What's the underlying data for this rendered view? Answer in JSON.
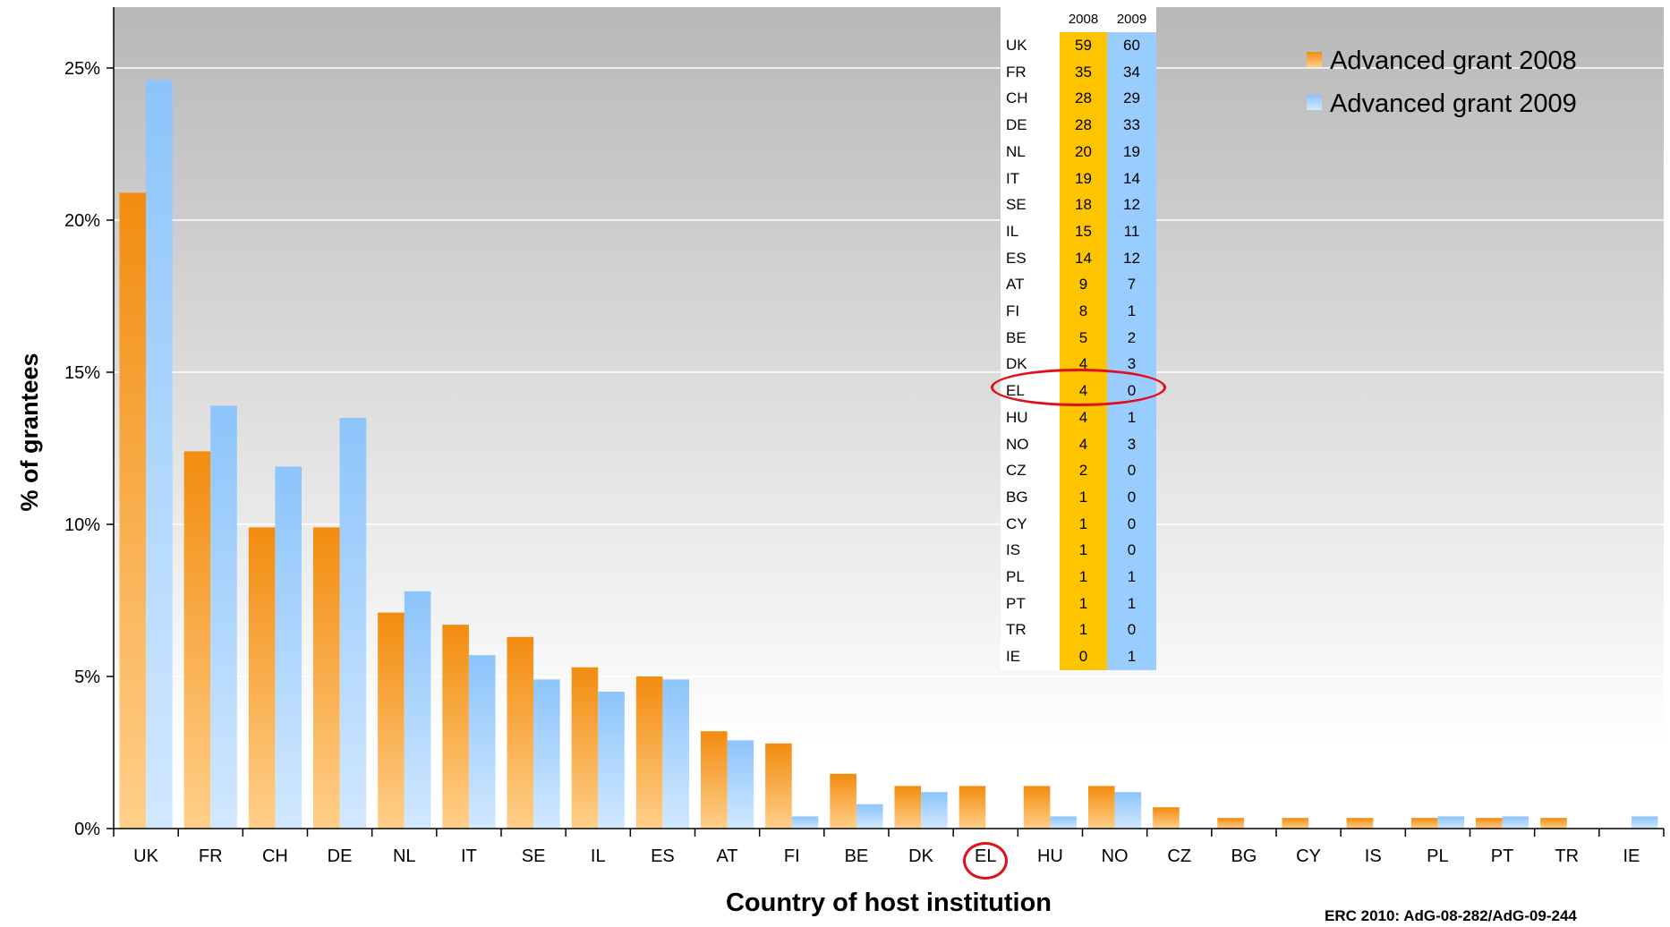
{
  "chart_data": {
    "type": "bar",
    "title": "",
    "xlabel": "Country of host institution",
    "ylabel": "% of grantees",
    "ylim": [
      0,
      0.27
    ],
    "yticks": [
      0,
      0.05,
      0.1,
      0.15,
      0.2,
      0.25
    ],
    "ytick_labels": [
      "0%",
      "5%",
      "10%",
      "15%",
      "20%",
      "25%"
    ],
    "grid": true,
    "legend_position": "top-right",
    "categories": [
      "UK",
      "FR",
      "CH",
      "DE",
      "NL",
      "IT",
      "SE",
      "IL",
      "ES",
      "AT",
      "FI",
      "BE",
      "DK",
      "EL",
      "HU",
      "NO",
      "CZ",
      "BG",
      "CY",
      "IS",
      "PL",
      "PT",
      "TR",
      "IE"
    ],
    "series": [
      {
        "name": "Advanced grant 2008",
        "color": "#f7941d",
        "values": [
          0.209,
          0.124,
          0.099,
          0.099,
          0.071,
          0.067,
          0.063,
          0.053,
          0.05,
          0.032,
          0.028,
          0.018,
          0.014,
          0.014,
          0.014,
          0.014,
          0.007,
          0.0035,
          0.0035,
          0.0035,
          0.0035,
          0.0035,
          0.0035,
          0
        ]
      },
      {
        "name": "Advanced grant 2009",
        "color": "#99ccff",
        "values": [
          0.246,
          0.139,
          0.119,
          0.135,
          0.078,
          0.057,
          0.049,
          0.045,
          0.049,
          0.029,
          0.004,
          0.008,
          0.012,
          0,
          0.004,
          0.012,
          0,
          0,
          0,
          0,
          0.004,
          0.004,
          0,
          0.004
        ]
      }
    ],
    "highlighted_category": "EL"
  },
  "table": {
    "header": [
      "2008",
      "2009"
    ],
    "rows": [
      {
        "country": "UK",
        "a": "59",
        "b": "60"
      },
      {
        "country": "FR",
        "a": "35",
        "b": "34"
      },
      {
        "country": "CH",
        "a": "28",
        "b": "29"
      },
      {
        "country": "DE",
        "a": "28",
        "b": "33"
      },
      {
        "country": "NL",
        "a": "20",
        "b": "19"
      },
      {
        "country": "IT",
        "a": "19",
        "b": "14"
      },
      {
        "country": "SE",
        "a": "18",
        "b": "12"
      },
      {
        "country": "IL",
        "a": "15",
        "b": "11"
      },
      {
        "country": "ES",
        "a": "14",
        "b": "12"
      },
      {
        "country": "AT",
        "a": "9",
        "b": "7"
      },
      {
        "country": "FI",
        "a": "8",
        "b": "1"
      },
      {
        "country": "BE",
        "a": "5",
        "b": "2"
      },
      {
        "country": "DK",
        "a": "4",
        "b": "3"
      },
      {
        "country": "EL",
        "a": "4",
        "b": "0"
      },
      {
        "country": "HU",
        "a": "4",
        "b": "1"
      },
      {
        "country": "NO",
        "a": "4",
        "b": "3"
      },
      {
        "country": "CZ",
        "a": "2",
        "b": "0"
      },
      {
        "country": "BG",
        "a": "1",
        "b": "0"
      },
      {
        "country": "CY",
        "a": "1",
        "b": "0"
      },
      {
        "country": "IS",
        "a": "1",
        "b": "0"
      },
      {
        "country": "PL",
        "a": "1",
        "b": "1"
      },
      {
        "country": "PT",
        "a": "1",
        "b": "1"
      },
      {
        "country": "TR",
        "a": "1",
        "b": "0"
      },
      {
        "country": "IE",
        "a": "0",
        "b": "1"
      }
    ]
  },
  "credit": "ERC 2010: AdG-08-282/AdG-09-244"
}
